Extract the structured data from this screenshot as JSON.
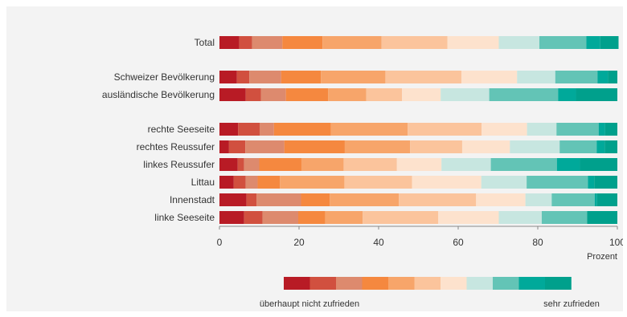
{
  "chart_data": {
    "type": "bar",
    "orientation": "horizontal",
    "stacked": true,
    "title": "",
    "xlabel": "Prozent",
    "ylabel": "",
    "xlim": [
      0,
      100
    ],
    "x_ticks": [
      "0",
      "20",
      "40",
      "60",
      "80",
      "100"
    ],
    "grid": false,
    "categories": [
      "Total",
      "Schweizer Bevölkerung",
      "ausländische Bevölkerung",
      "rechte Seeseite",
      "rechtes Reussufer",
      "linkes Reussufer",
      "Littau",
      "Innenstadt",
      "linke Seeseite"
    ],
    "colors": [
      "#b81b25",
      "#d1503f",
      "#dd8a6e",
      "#f5883f",
      "#f7a56a",
      "#fbc49c",
      "#fde2cd",
      "#c7e6e0",
      "#63c4b6",
      "#00a99a",
      "#00a08c"
    ],
    "values": [
      [
        5,
        3.2,
        7.6,
        10.1,
        14.8,
        16.6,
        12.9,
        10.2,
        11.8,
        3.5,
        4.6
      ],
      [
        4.4,
        3.1,
        8,
        10,
        16.2,
        19.1,
        14,
        9.6,
        10.6,
        2.6,
        2.4
      ],
      [
        6.6,
        3.8,
        6.3,
        10.6,
        9.6,
        9,
        9.7,
        12.2,
        17.3,
        4.5,
        10.4
      ],
      [
        4.7,
        5.4,
        3.6,
        14.3,
        19.3,
        18.6,
        11.4,
        7.4,
        10.6,
        1.6,
        3.1
      ],
      [
        2.4,
        4.1,
        9.8,
        15.2,
        16.4,
        13.1,
        12,
        12.5,
        9.3,
        2,
        3.2
      ],
      [
        4.6,
        1.6,
        3.8,
        10.6,
        10.6,
        13.4,
        11.2,
        12.4,
        16.6,
        5.8,
        9.4
      ],
      [
        3.6,
        3,
        3,
        5.6,
        16.2,
        17,
        17.4,
        11.4,
        15.4,
        1.6,
        5.8
      ],
      [
        6.8,
        2.5,
        11.2,
        7.2,
        17.4,
        19.4,
        12.4,
        6.6,
        10.8,
        0.6,
        5.1
      ],
      [
        6.2,
        4.6,
        9,
        6.8,
        9.4,
        19,
        15.2,
        10.8,
        11.4,
        0,
        7.6
      ]
    ],
    "legend": {
      "placement": "bottom",
      "left_label": "überhaupt nicht zufrieden",
      "right_label": "sehr zufrieden"
    }
  }
}
